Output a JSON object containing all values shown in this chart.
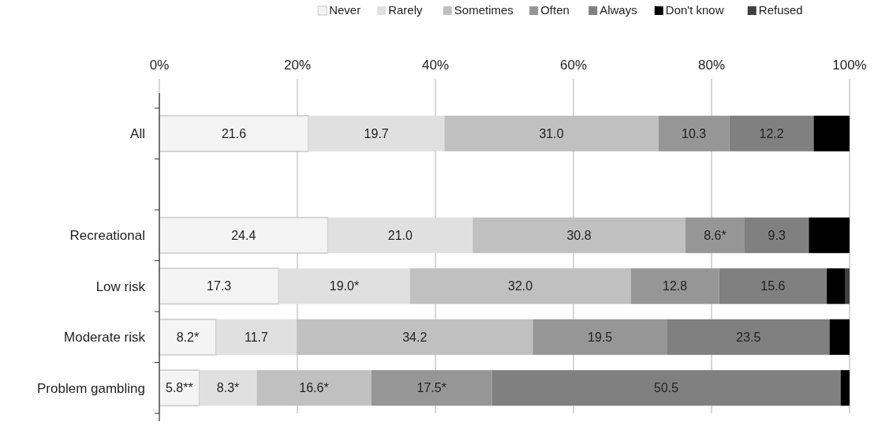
{
  "chart_data": {
    "type": "bar",
    "orientation": "horizontal",
    "stacked": true,
    "categories": [
      "All",
      null,
      "Recreational",
      "Low risk",
      "Moderate risk",
      "Problem gambling"
    ],
    "series": [
      {
        "name": "Never",
        "color": "#f4f4f4",
        "values": [
          21.6,
          null,
          24.4,
          17.3,
          8.2,
          5.8
        ],
        "value_labels": [
          "21.6",
          null,
          "24.4",
          "17.3",
          "8.2*",
          "5.8**"
        ]
      },
      {
        "name": "Rarely",
        "color": "#e0e0e0",
        "values": [
          19.7,
          null,
          21.0,
          19.0,
          11.7,
          8.3
        ],
        "value_labels": [
          "19.7",
          null,
          "21.0",
          "19.0*",
          "11.7",
          "8.3*"
        ]
      },
      {
        "name": "Sometimes",
        "color": "#c0c0c0",
        "values": [
          31.0,
          null,
          30.8,
          32.0,
          34.2,
          16.6
        ],
        "value_labels": [
          "31.0",
          null,
          "30.8",
          "32.0",
          "34.2",
          "16.6*"
        ]
      },
      {
        "name": "Often",
        "color": "#969696",
        "values": [
          10.3,
          null,
          8.6,
          12.8,
          19.5,
          17.5
        ],
        "value_labels": [
          "10.3",
          null,
          "8.6*",
          "12.8",
          "19.5",
          "17.5*"
        ]
      },
      {
        "name": "Always",
        "color": "#808080",
        "values": [
          12.2,
          null,
          9.3,
          15.6,
          23.5,
          50.5
        ],
        "value_labels": [
          "12.2",
          null,
          "9.3",
          "15.6",
          "23.5",
          "50.5"
        ]
      },
      {
        "name": "Don't know",
        "color": "#000000",
        "values": [
          5.2,
          null,
          5.9,
          2.7,
          2.9,
          1.3
        ]
      },
      {
        "name": "Refused",
        "color": "#404040",
        "values": [
          0,
          null,
          0,
          0.6,
          0,
          0
        ]
      }
    ],
    "xlim": [
      0,
      100
    ],
    "xticks": [
      {
        "value": 0,
        "label": "0%"
      },
      {
        "value": 20,
        "label": "20%"
      },
      {
        "value": 40,
        "label": "40%"
      },
      {
        "value": 60,
        "label": "60%"
      },
      {
        "value": 80,
        "label": "80%"
      },
      {
        "value": 100,
        "label": "100%"
      }
    ],
    "grid": "x",
    "legend": "top right"
  }
}
